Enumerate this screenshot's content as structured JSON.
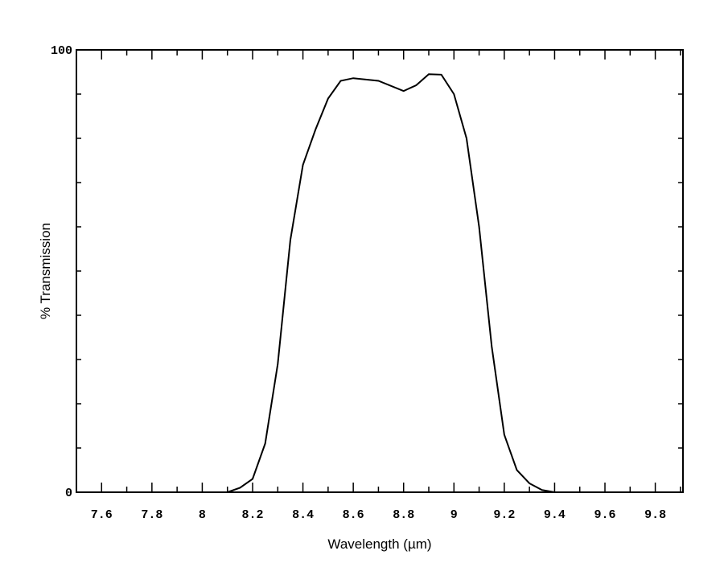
{
  "chart_data": {
    "type": "line",
    "x_label": "Wavelength (µm)",
    "y_label": "% Transmission",
    "xlim": [
      7.5,
      9.91
    ],
    "ylim": [
      0,
      100
    ],
    "xticks": [
      7.6,
      7.8,
      8,
      8.2,
      8.4,
      8.6,
      8.8,
      9,
      9.2,
      9.4,
      9.6,
      9.8
    ],
    "xminorticks": [
      7.7,
      7.9,
      8.1,
      8.3,
      8.5,
      8.7,
      8.9,
      9.1,
      9.3,
      9.5,
      9.7,
      9.9
    ],
    "yticks": [
      0,
      100
    ],
    "yminorticks": [
      10,
      20,
      30,
      40,
      50,
      60,
      70,
      80,
      90
    ],
    "grid": false,
    "series": [
      {
        "name": "Transmission",
        "color": "#000000",
        "x": [
          7.52,
          8.0,
          8.1,
          8.15,
          8.2,
          8.25,
          8.3,
          8.35,
          8.4,
          8.45,
          8.5,
          8.55,
          8.6,
          8.7,
          8.8,
          8.85,
          8.9,
          8.95,
          9.0,
          9.05,
          9.1,
          9.15,
          9.2,
          9.25,
          9.3,
          9.35,
          9.4,
          9.6
        ],
        "values": [
          0,
          0,
          0,
          1,
          3,
          11,
          29,
          57,
          74,
          82,
          89,
          93,
          93.6,
          93,
          90.7,
          92,
          94.5,
          94.4,
          90,
          80,
          60,
          33,
          13,
          5,
          2,
          0.5,
          0,
          0
        ]
      }
    ]
  }
}
